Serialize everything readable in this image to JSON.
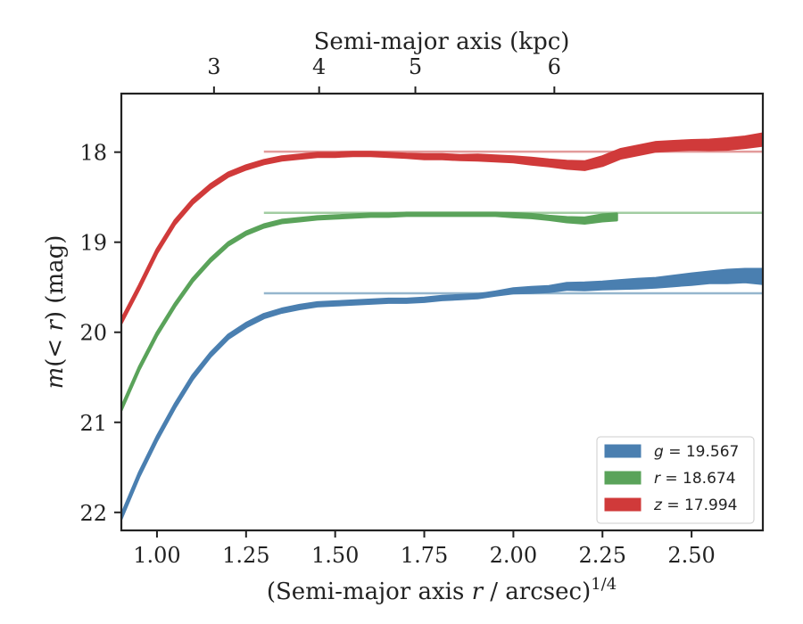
{
  "chart_data": {
    "type": "line",
    "xlabel": "(Semi-major axis r / arcsec)^1/4",
    "xlabel_parts": {
      "before": "(Semi-major axis ",
      "var": "r",
      "after": " / arcsec)",
      "sup": "1/4"
    },
    "ylabel": "m(<r) (mag)",
    "ylabel_parts": {
      "func": "m",
      "open": "(",
      "arg": "< r",
      "close": ")",
      "unit": " (mag)"
    },
    "top_xlabel": "Semi-major axis (kpc)",
    "xlim": [
      0.9,
      2.7
    ],
    "ylim": [
      22.2,
      17.35
    ],
    "y_inverted": true,
    "xticks": [
      1.0,
      1.25,
      1.5,
      1.75,
      2.0,
      2.25,
      2.5
    ],
    "xtick_labels": [
      "1.00",
      "1.25",
      "1.50",
      "1.75",
      "2.00",
      "2.25",
      "2.50"
    ],
    "yticks": [
      18,
      19,
      20,
      21,
      22
    ],
    "ytick_labels": [
      "18",
      "19",
      "20",
      "21",
      "22"
    ],
    "top_xticks": [
      3,
      4,
      5,
      6
    ],
    "top_xtick_labels": [
      "3",
      "4",
      "5",
      "6"
    ],
    "top_tick_positions_bottom_units": [
      1.16,
      1.455,
      1.725,
      2.115
    ],
    "legend_position": "lower-right",
    "grid": false,
    "series": [
      {
        "name": "g = 19.567",
        "legend_parts": {
          "var": "g",
          "rest": " = 19.567"
        },
        "color": "#4a7fb0",
        "model_color": "#8aaec8",
        "asymptote": 19.567,
        "x": [
          0.9,
          0.95,
          1.0,
          1.05,
          1.1,
          1.15,
          1.2,
          1.25,
          1.3,
          1.35,
          1.4,
          1.45,
          1.5,
          1.55,
          1.6,
          1.65,
          1.7,
          1.75,
          1.8,
          1.85,
          1.9,
          1.95,
          2.0,
          2.05,
          2.1,
          2.15,
          2.2,
          2.25,
          2.3,
          2.35,
          2.4,
          2.45,
          2.5,
          2.55,
          2.6,
          2.65,
          2.7
        ],
        "y": [
          22.05,
          21.58,
          21.18,
          20.82,
          20.5,
          20.25,
          20.05,
          19.92,
          19.82,
          19.76,
          19.72,
          19.69,
          19.68,
          19.67,
          19.66,
          19.65,
          19.65,
          19.64,
          19.62,
          19.61,
          19.6,
          19.57,
          19.54,
          19.53,
          19.52,
          19.49,
          19.49,
          19.48,
          19.47,
          19.46,
          19.45,
          19.43,
          19.41,
          19.39,
          19.38,
          19.37,
          19.38
        ],
        "band_halfwidth": [
          0.02,
          0.02,
          0.02,
          0.02,
          0.02,
          0.02,
          0.02,
          0.02,
          0.02,
          0.02,
          0.02,
          0.02,
          0.02,
          0.02,
          0.02,
          0.02,
          0.02,
          0.02,
          0.02,
          0.02,
          0.02,
          0.02,
          0.025,
          0.03,
          0.03,
          0.035,
          0.04,
          0.04,
          0.045,
          0.05,
          0.05,
          0.055,
          0.06,
          0.06,
          0.07,
          0.07,
          0.08
        ]
      },
      {
        "name": "r = 18.674",
        "legend_parts": {
          "var": "r",
          "rest": " = 18.674"
        },
        "color": "#5aa35a",
        "model_color": "#98c898",
        "asymptote": 18.674,
        "x": [
          0.9,
          0.95,
          1.0,
          1.05,
          1.1,
          1.15,
          1.2,
          1.25,
          1.3,
          1.35,
          1.4,
          1.45,
          1.5,
          1.55,
          1.6,
          1.65,
          1.7,
          1.75,
          1.8,
          1.85,
          1.9,
          1.95,
          2.0,
          2.05,
          2.1,
          2.15,
          2.2,
          2.25,
          2.29
        ],
        "y": [
          20.85,
          20.4,
          20.02,
          19.7,
          19.42,
          19.2,
          19.02,
          18.9,
          18.82,
          18.77,
          18.75,
          18.73,
          18.72,
          18.71,
          18.7,
          18.7,
          18.69,
          18.69,
          18.69,
          18.69,
          18.69,
          18.69,
          18.7,
          18.71,
          18.73,
          18.75,
          18.76,
          18.73,
          18.72
        ],
        "band_halfwidth": [
          0.015,
          0.015,
          0.015,
          0.015,
          0.015,
          0.015,
          0.015,
          0.015,
          0.015,
          0.015,
          0.015,
          0.015,
          0.015,
          0.015,
          0.015,
          0.015,
          0.015,
          0.015,
          0.015,
          0.015,
          0.015,
          0.015,
          0.02,
          0.02,
          0.02,
          0.025,
          0.03,
          0.035,
          0.035
        ]
      },
      {
        "name": "z = 17.994",
        "legend_parts": {
          "var": "z",
          "rest": " = 17.994"
        },
        "color": "#d03a3a",
        "model_color": "#e09090",
        "asymptote": 17.994,
        "x": [
          0.9,
          0.95,
          1.0,
          1.05,
          1.1,
          1.15,
          1.2,
          1.25,
          1.3,
          1.35,
          1.4,
          1.45,
          1.5,
          1.55,
          1.6,
          1.65,
          1.7,
          1.75,
          1.8,
          1.85,
          1.9,
          1.95,
          2.0,
          2.05,
          2.1,
          2.15,
          2.2,
          2.25,
          2.3,
          2.35,
          2.4,
          2.45,
          2.5,
          2.55,
          2.6,
          2.65,
          2.7
        ],
        "y": [
          19.88,
          19.5,
          19.1,
          18.78,
          18.55,
          18.38,
          18.25,
          18.17,
          18.11,
          18.07,
          18.05,
          18.03,
          18.03,
          18.02,
          18.02,
          18.03,
          18.04,
          18.05,
          18.05,
          18.06,
          18.06,
          18.07,
          18.08,
          18.1,
          18.12,
          18.14,
          18.15,
          18.1,
          18.02,
          17.98,
          17.94,
          17.93,
          17.92,
          17.92,
          17.91,
          17.89,
          17.86
        ],
        "band_halfwidth": [
          0.02,
          0.02,
          0.02,
          0.02,
          0.02,
          0.02,
          0.02,
          0.02,
          0.02,
          0.02,
          0.02,
          0.02,
          0.02,
          0.02,
          0.02,
          0.02,
          0.02,
          0.025,
          0.025,
          0.025,
          0.03,
          0.03,
          0.03,
          0.035,
          0.035,
          0.04,
          0.045,
          0.05,
          0.05,
          0.05,
          0.05,
          0.05,
          0.05,
          0.055,
          0.06,
          0.06,
          0.065
        ]
      }
    ]
  }
}
